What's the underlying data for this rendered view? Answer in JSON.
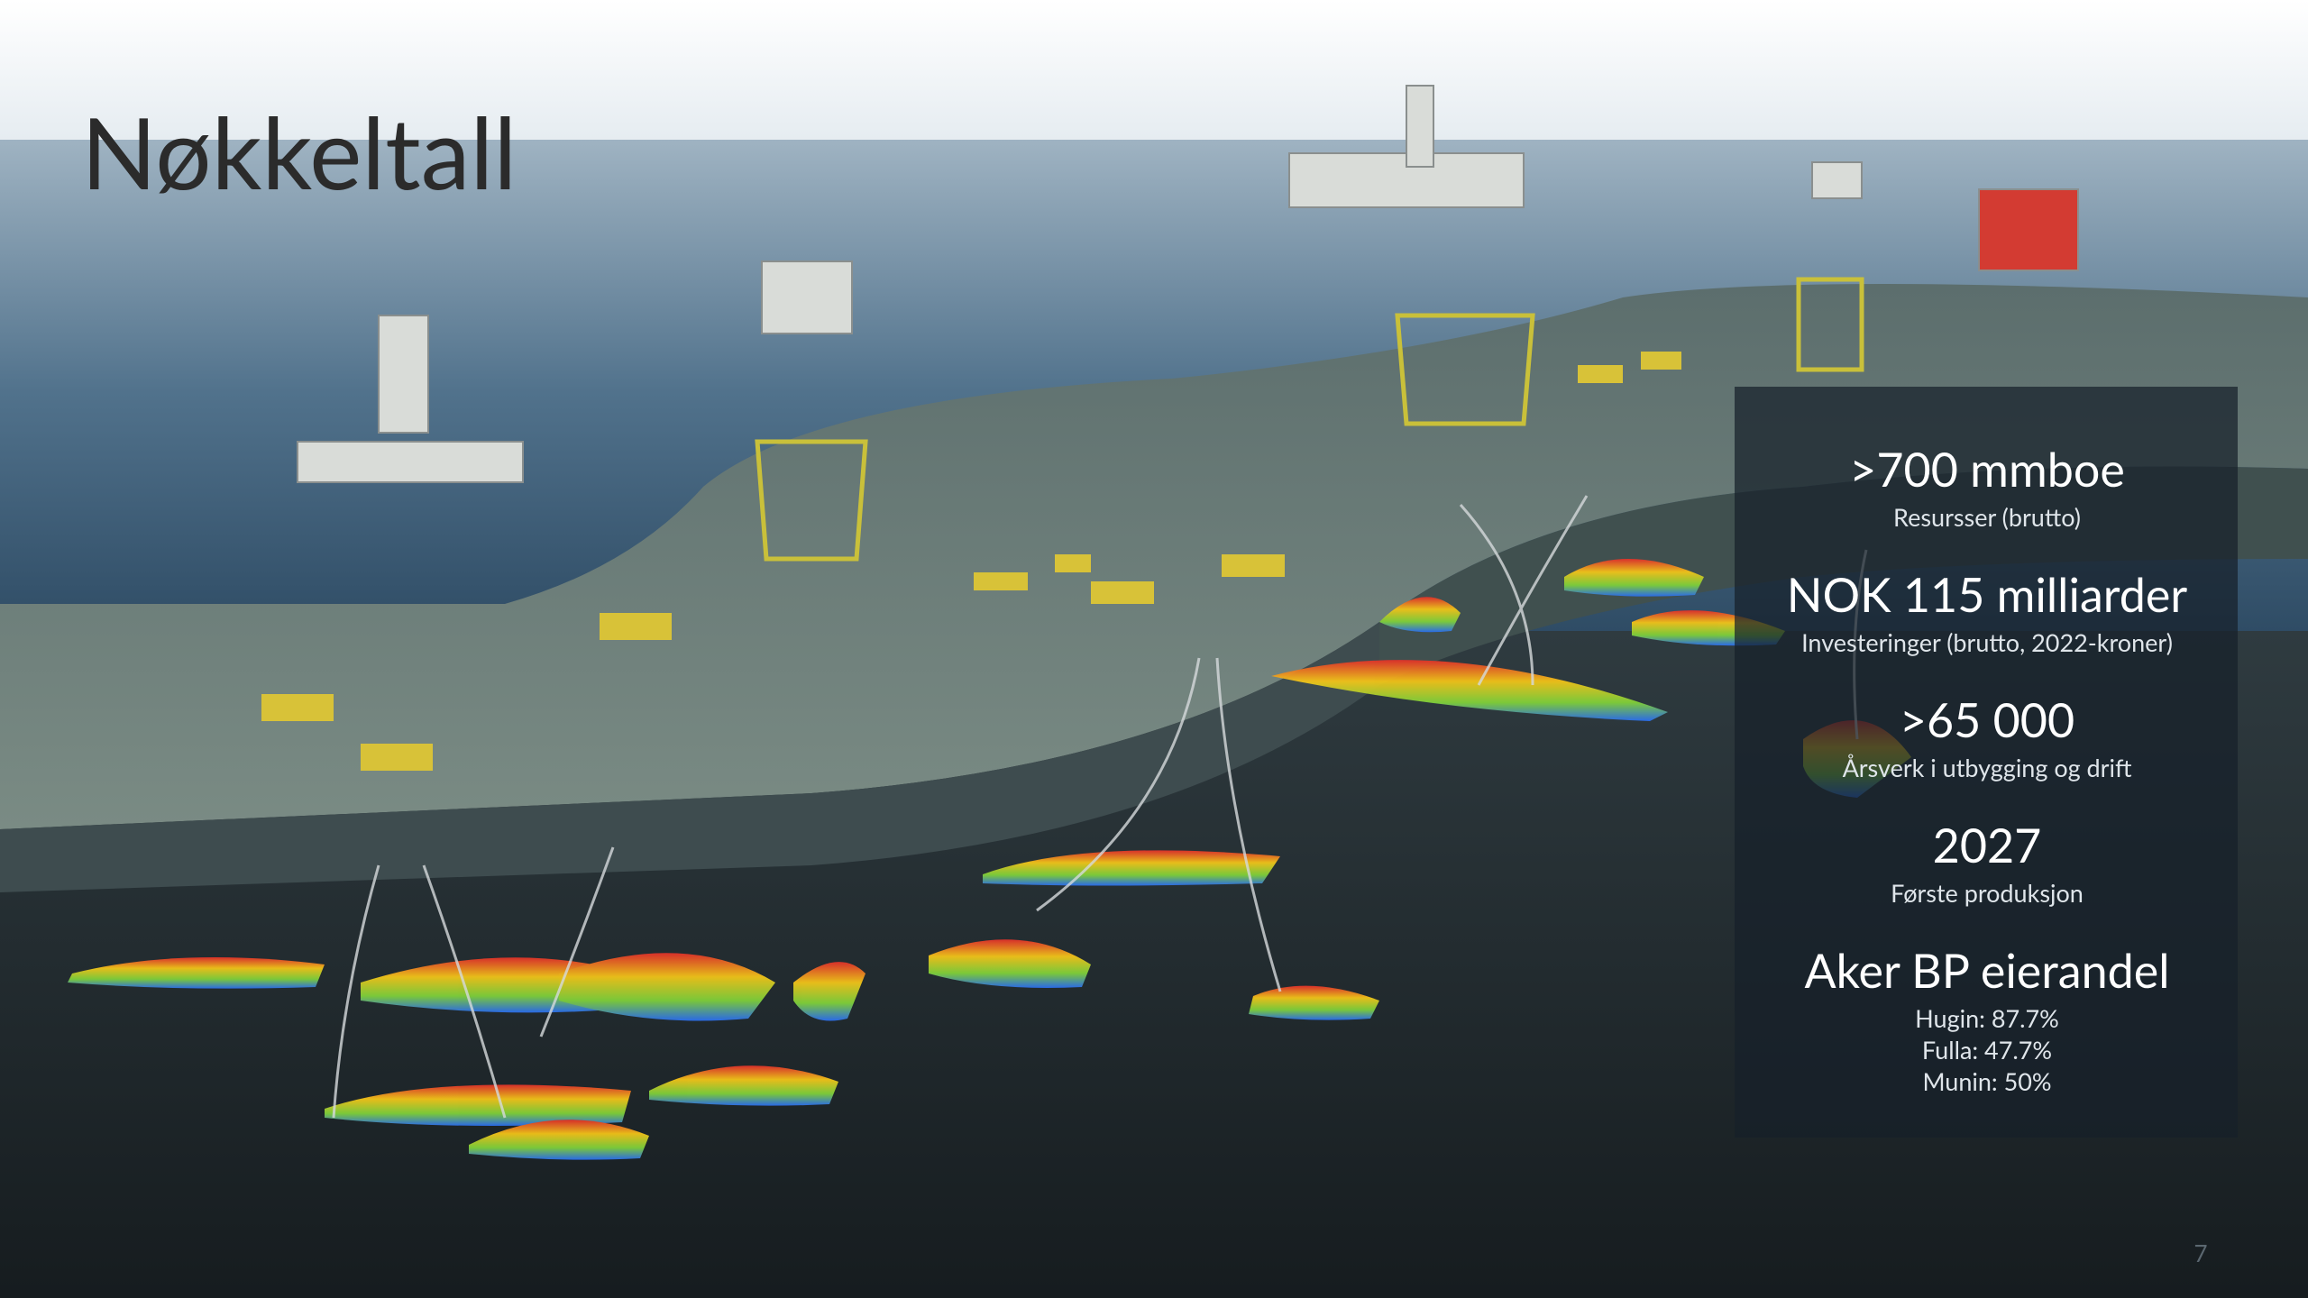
{
  "title": "Nøkkeltall",
  "key_figures": [
    {
      "value": ">700 mmboe",
      "label": "Resursser (brutto)"
    },
    {
      "value": "NOK 115 milliarder",
      "label": "Investeringer (brutto, 2022-kroner)"
    },
    {
      "value": ">65 000",
      "label": "Årsverk i utbygging og drift"
    },
    {
      "value": "2027",
      "label": "Første produksjon"
    },
    {
      "value": "Aker BP eierandel",
      "lines": [
        "Hugin: 87.7%",
        "Fulla: 47.7%",
        "Munin: 50%"
      ]
    }
  ],
  "page_number": "7"
}
